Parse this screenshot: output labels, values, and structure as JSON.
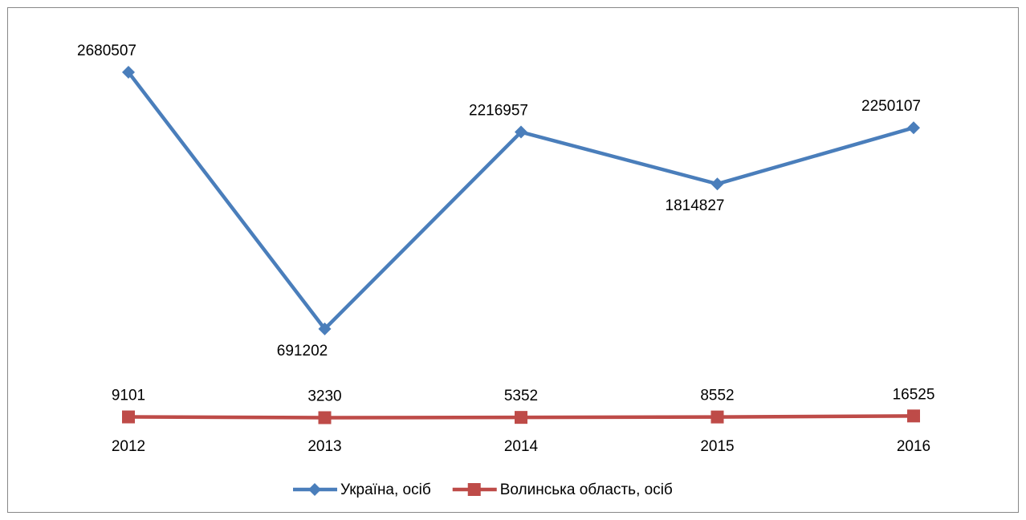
{
  "chart_data": {
    "type": "line",
    "categories": [
      "2012",
      "2013",
      "2014",
      "2015",
      "2016"
    ],
    "series": [
      {
        "name": "Україна, осіб",
        "color": "#4a7ebb",
        "marker": "diamond",
        "values": [
          2680507,
          691202,
          2216957,
          1814827,
          2250107
        ]
      },
      {
        "name": "Волинська область, осіб",
        "color": "#be4b48",
        "marker": "square",
        "values": [
          9101,
          3230,
          5352,
          8552,
          16525
        ]
      }
    ],
    "legend": "bottom"
  }
}
